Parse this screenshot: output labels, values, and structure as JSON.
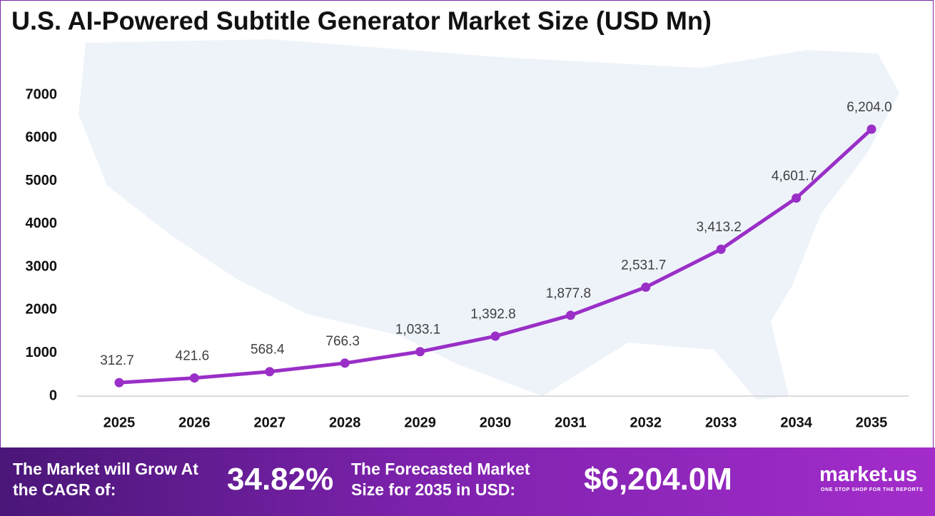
{
  "chart_data": {
    "type": "line",
    "title": "U.S. AI-Powered Subtitle Generator Market Size (USD Mn)",
    "categories": [
      "2025",
      "2026",
      "2027",
      "2028",
      "2029",
      "2030",
      "2031",
      "2032",
      "2033",
      "2034",
      "2035"
    ],
    "values": [
      312.7,
      421.6,
      568.4,
      766.3,
      1033.1,
      1392.8,
      1877.8,
      2531.7,
      3413.2,
      4601.7,
      6204.0
    ],
    "value_labels": [
      "312.7",
      "421.6",
      "568.4",
      "766.3",
      "1,033.1",
      "1,392.8",
      "1,877.8",
      "2,531.7",
      "3,413.2",
      "4,601.7",
      "6,204.0"
    ],
    "color": "#9a2fc7",
    "ylim": [
      0,
      7000
    ],
    "yticks": [
      0,
      1000,
      2000,
      3000,
      4000,
      5000,
      6000,
      7000
    ],
    "grid": false
  },
  "footer": {
    "growth_text": "The Market will Grow At the CAGR of:",
    "cagr": "34.82%",
    "forecast_text": "The Forecasted Market Size for 2035 in USD:",
    "forecast_value": "$6,204.0M",
    "brand": "market.us",
    "tagline": "ONE STOP SHOP FOR THE REPORTS"
  }
}
